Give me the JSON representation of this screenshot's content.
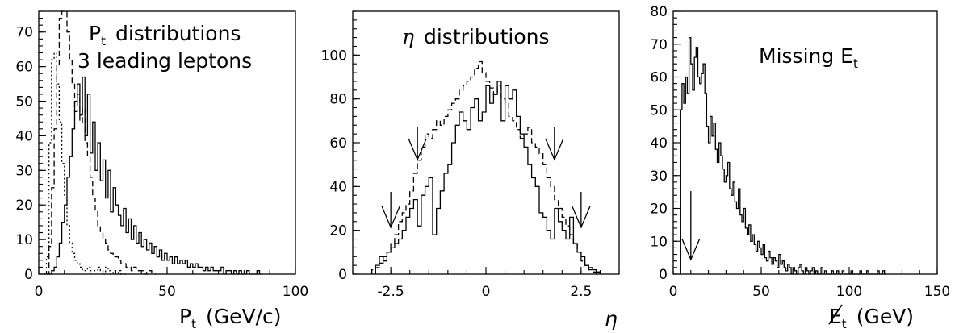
{
  "chart_data": [
    {
      "type": "histogram",
      "title_lines": [
        "P",
        "distributions",
        "3 leading leptons"
      ],
      "title_sub": "t",
      "xlabel": "P",
      "xlabel_sub": "t",
      "xlabel_units": "(GeV/c)",
      "xlim": [
        0,
        100
      ],
      "ylim": [
        0,
        76
      ],
      "xticks": [
        0,
        50,
        100
      ],
      "xticklabels": [
        "0",
        "50",
        "100"
      ],
      "yticks": [
        0,
        10,
        20,
        30,
        40,
        50,
        60,
        70
      ],
      "yticklabels": [
        "0",
        "10",
        "20",
        "30",
        "40",
        "50",
        "60",
        "70"
      ],
      "series": [
        {
          "style": "dotted",
          "x": [
            2,
            3,
            4,
            5,
            6,
            7,
            8,
            9,
            10,
            11,
            12,
            13,
            14,
            15,
            16,
            17,
            18,
            19,
            20,
            21,
            22,
            23,
            24,
            25,
            26,
            27,
            28,
            29,
            30,
            31,
            32,
            33,
            34
          ],
          "values": [
            0,
            5,
            38,
            62,
            64,
            55,
            44,
            32,
            22,
            14,
            9,
            6,
            4,
            3,
            2,
            1,
            1,
            2,
            1,
            1,
            1,
            2,
            1,
            0,
            2,
            1,
            0,
            1,
            0,
            1,
            0,
            0,
            0
          ]
        },
        {
          "style": "dashed",
          "x": [
            3,
            4,
            5,
            6,
            7,
            8,
            9,
            10,
            11,
            12,
            13,
            14,
            15,
            16,
            17,
            18,
            19,
            20,
            21,
            22,
            23,
            24,
            25,
            26,
            27,
            28,
            29,
            30,
            31,
            32,
            33,
            34,
            35,
            36,
            37,
            38,
            39,
            40,
            41,
            42,
            43,
            44,
            45
          ],
          "values": [
            0,
            8,
            25,
            42,
            60,
            74,
            76,
            76,
            70,
            62,
            55,
            47,
            52,
            44,
            48,
            38,
            34,
            28,
            22,
            18,
            14,
            12,
            10,
            9,
            7,
            6,
            5,
            5,
            4,
            3,
            3,
            2,
            2,
            1,
            2,
            1,
            1,
            1,
            0,
            1,
            1,
            0,
            0
          ]
        },
        {
          "style": "solid",
          "x": [
            2,
            3,
            4,
            5,
            6,
            7,
            8,
            9,
            10,
            11,
            12,
            13,
            14,
            15,
            16,
            17,
            18,
            19,
            20,
            21,
            22,
            23,
            24,
            25,
            26,
            27,
            28,
            29,
            30,
            31,
            32,
            33,
            34,
            35,
            36,
            37,
            38,
            39,
            40,
            41,
            42,
            43,
            44,
            45,
            46,
            47,
            48,
            49,
            50,
            51,
            52,
            53,
            54,
            55,
            56,
            57,
            58,
            59,
            60,
            61,
            62,
            63,
            64,
            65,
            66,
            67,
            68,
            69,
            70,
            71,
            72,
            73,
            74,
            75,
            76,
            77,
            78,
            79,
            80,
            81,
            82,
            83,
            84,
            85,
            86
          ],
          "values": [
            0,
            0,
            0,
            1,
            2,
            5,
            9,
            15,
            20,
            28,
            34,
            42,
            50,
            55,
            46,
            57,
            40,
            52,
            35,
            44,
            30,
            38,
            27,
            33,
            22,
            30,
            18,
            25,
            20,
            17,
            14,
            19,
            12,
            16,
            10,
            14,
            9,
            12,
            8,
            10,
            7,
            9,
            6,
            8,
            5,
            7,
            4,
            6,
            4,
            5,
            3,
            5,
            3,
            4,
            3,
            4,
            2,
            3,
            2,
            3,
            2,
            2,
            1,
            2,
            1,
            2,
            1,
            1,
            1,
            2,
            0,
            1,
            1,
            0,
            1,
            0,
            1,
            0,
            0,
            1,
            0,
            0,
            0,
            1,
            0
          ]
        }
      ]
    },
    {
      "type": "histogram",
      "title_greek": "η",
      "title": "distributions",
      "xlabel": "η",
      "xlim": [
        -3.5,
        3.5
      ],
      "ylim": [
        0,
        120
      ],
      "xticks": [
        -2.5,
        0,
        2.5
      ],
      "xticklabels": [
        "-2.5",
        "0",
        "2.5"
      ],
      "yticks": [
        0,
        20,
        40,
        60,
        80,
        100
      ],
      "yticklabels": [
        "0",
        "20",
        "40",
        "60",
        "80",
        "100"
      ],
      "arrows_x": [
        -2.5,
        -1.8,
        1.8,
        2.5
      ],
      "series": [
        {
          "style": "dashed",
          "x": [
            -3.0,
            -2.9,
            -2.8,
            -2.7,
            -2.6,
            -2.5,
            -2.4,
            -2.3,
            -2.2,
            -2.1,
            -2.0,
            -1.9,
            -1.8,
            -1.7,
            -1.6,
            -1.5,
            -1.4,
            -1.3,
            -1.2,
            -1.1,
            -1.0,
            -0.9,
            -0.8,
            -0.7,
            -0.6,
            -0.5,
            -0.4,
            -0.3,
            -0.2,
            -0.1,
            0.0,
            0.1,
            0.2,
            0.3,
            0.4,
            0.5,
            0.6,
            0.7,
            0.8,
            0.9,
            1.0,
            1.1,
            1.2,
            1.3,
            1.4,
            1.5,
            1.6,
            1.7,
            1.8,
            1.9,
            2.0,
            2.1,
            2.2,
            2.3,
            2.4,
            2.5,
            2.6,
            2.7,
            2.8
          ],
          "values": [
            2,
            3,
            5,
            8,
            10,
            14,
            18,
            24,
            28,
            32,
            38,
            46,
            52,
            58,
            64,
            62,
            66,
            70,
            68,
            72,
            75,
            78,
            80,
            84,
            86,
            88,
            90,
            94,
            97,
            92,
            88,
            85,
            82,
            86,
            80,
            78,
            72,
            70,
            66,
            62,
            64,
            67,
            60,
            58,
            55,
            50,
            44,
            40,
            34,
            30,
            26,
            22,
            18,
            14,
            10,
            6,
            4,
            2,
            1
          ]
        },
        {
          "style": "solid",
          "x": [
            -2.9,
            -2.8,
            -2.7,
            -2.6,
            -2.5,
            -2.4,
            -2.3,
            -2.2,
            -2.1,
            -2.0,
            -1.9,
            -1.8,
            -1.7,
            -1.6,
            -1.5,
            -1.4,
            -1.3,
            -1.2,
            -1.1,
            -1.0,
            -0.9,
            -0.8,
            -0.7,
            -0.6,
            -0.5,
            -0.4,
            -0.3,
            -0.2,
            -0.1,
            0.0,
            0.1,
            0.2,
            0.3,
            0.4,
            0.5,
            0.6,
            0.7,
            0.8,
            0.9,
            1.0,
            1.1,
            1.2,
            1.3,
            1.4,
            1.5,
            1.6,
            1.7,
            1.8,
            1.9,
            2.0,
            2.1,
            2.2,
            2.3,
            2.4,
            2.5,
            2.6,
            2.7,
            2.8,
            2.9
          ],
          "values": [
            4,
            8,
            6,
            10,
            12,
            14,
            16,
            20,
            26,
            30,
            34,
            22,
            36,
            40,
            44,
            18,
            30,
            38,
            46,
            50,
            60,
            68,
            74,
            70,
            66,
            76,
            80,
            70,
            74,
            86,
            78,
            82,
            88,
            70,
            86,
            80,
            84,
            72,
            64,
            58,
            50,
            44,
            40,
            28,
            26,
            20,
            16,
            30,
            24,
            20,
            16,
            26,
            14,
            10,
            8,
            4,
            3,
            2,
            1
          ]
        }
      ]
    },
    {
      "type": "histogram",
      "title": "Missing E",
      "title_sub": "t",
      "xlabel": "E",
      "xlabel_sub": "t",
      "xlabel_units": "(GeV)",
      "xlim": [
        0,
        150
      ],
      "ylim": [
        0,
        80
      ],
      "xticks": [
        0,
        50,
        100,
        150
      ],
      "xticklabels": [
        "0",
        "50",
        "100",
        "150"
      ],
      "yticks": [
        0,
        10,
        20,
        30,
        40,
        50,
        60,
        70,
        80
      ],
      "yticklabels": [
        "0",
        "10",
        "20",
        "30",
        "40",
        "50",
        "60",
        "70",
        "80"
      ],
      "arrows_x": [
        10
      ],
      "series": [
        {
          "style": "solid",
          "x": [
            4,
            5,
            6,
            7,
            8,
            9,
            10,
            11,
            12,
            13,
            14,
            15,
            16,
            17,
            18,
            19,
            20,
            21,
            22,
            23,
            24,
            25,
            26,
            27,
            28,
            29,
            30,
            31,
            32,
            33,
            34,
            35,
            36,
            37,
            38,
            39,
            40,
            41,
            42,
            43,
            44,
            45,
            46,
            47,
            48,
            49,
            50,
            51,
            52,
            53,
            54,
            55,
            56,
            57,
            58,
            59,
            60,
            61,
            62,
            63,
            64,
            65,
            66,
            67,
            68,
            69,
            70,
            71,
            72,
            73,
            74,
            75,
            76,
            77,
            78,
            79,
            80,
            81,
            82,
            83,
            84,
            85,
            86,
            87,
            88,
            89,
            90,
            91,
            92,
            93,
            94,
            95,
            96,
            97,
            98,
            99,
            100,
            101,
            102,
            103,
            104,
            105,
            106,
            107,
            108,
            109,
            110,
            111,
            112,
            113,
            114,
            115,
            116,
            117,
            118,
            119,
            120
          ],
          "values": [
            50,
            58,
            52,
            60,
            55,
            72,
            64,
            56,
            66,
            69,
            60,
            58,
            61,
            64,
            55,
            45,
            40,
            48,
            42,
            46,
            38,
            34,
            40,
            36,
            32,
            28,
            30,
            34,
            26,
            24,
            28,
            22,
            20,
            26,
            18,
            16,
            20,
            14,
            12,
            15,
            10,
            12,
            9,
            7,
            10,
            8,
            6,
            9,
            5,
            4,
            7,
            5,
            3,
            5,
            4,
            2,
            6,
            3,
            4,
            2,
            1,
            3,
            2,
            0,
            2,
            1,
            0,
            2,
            3,
            1,
            0,
            2,
            1,
            0,
            1,
            2,
            0,
            1,
            0,
            0,
            2,
            0,
            1,
            0,
            0,
            0,
            1,
            0,
            0,
            1,
            0,
            0,
            1,
            0,
            0,
            0,
            0,
            1,
            0,
            0,
            0,
            0,
            1,
            0,
            0,
            0,
            1,
            0,
            0,
            0,
            0,
            0,
            1,
            0,
            0,
            1,
            0
          ]
        }
      ]
    }
  ]
}
